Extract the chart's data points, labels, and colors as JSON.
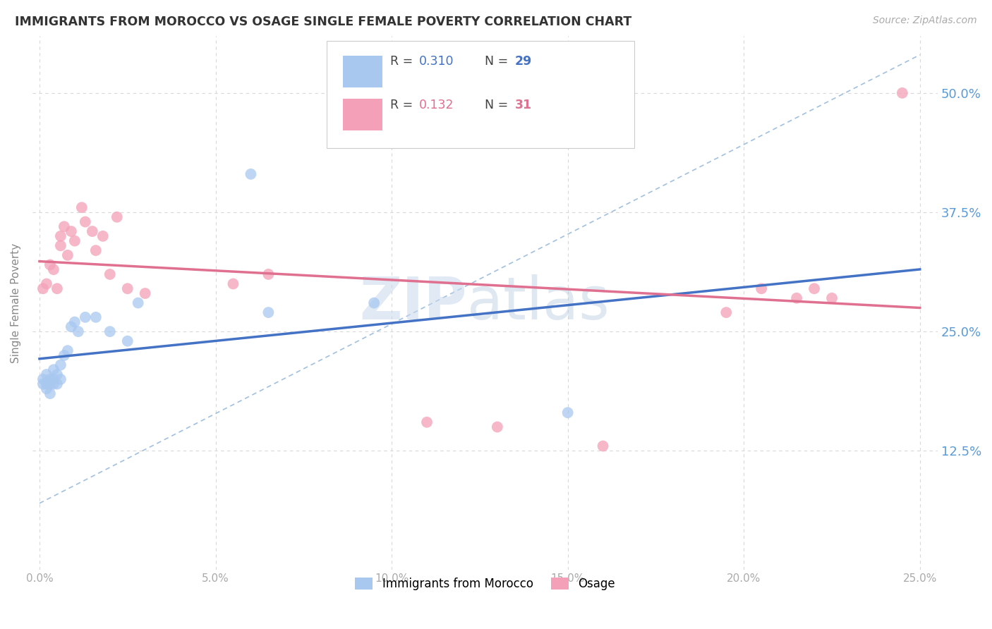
{
  "title": "IMMIGRANTS FROM MOROCCO VS OSAGE SINGLE FEMALE POVERTY CORRELATION CHART",
  "source": "Source: ZipAtlas.com",
  "ylabel": "Single Female Poverty",
  "ytick_labels": [
    "12.5%",
    "25.0%",
    "37.5%",
    "50.0%"
  ],
  "ytick_values": [
    0.125,
    0.25,
    0.375,
    0.5
  ],
  "xtick_values": [
    0.0,
    0.05,
    0.1,
    0.15,
    0.2,
    0.25
  ],
  "xtick_labels": [
    "0.0%",
    "5.0%",
    "10.0%",
    "15.0%",
    "20.0%",
    "25.0%"
  ],
  "xlim": [
    -0.002,
    0.255
  ],
  "ylim": [
    0.0,
    0.56
  ],
  "legend_r1": "0.310",
  "legend_n1": "29",
  "legend_r2": "0.132",
  "legend_n2": "31",
  "legend_label1": "Immigrants from Morocco",
  "legend_label2": "Osage",
  "color_blue": "#a8c8f0",
  "color_pink": "#f4a0b8",
  "line_blue": "#4472c4",
  "line_pink": "#e07090",
  "line_dashed_color": "#8ab0d8",
  "title_color": "#333333",
  "ytick_color_right": "#5b9bd5",
  "background_color": "#ffffff",
  "grid_color": "#d8d8d8",
  "morocco_x": [
    0.001,
    0.001,
    0.002,
    0.002,
    0.002,
    0.003,
    0.003,
    0.003,
    0.004,
    0.004,
    0.004,
    0.005,
    0.005,
    0.006,
    0.006,
    0.007,
    0.008,
    0.009,
    0.01,
    0.011,
    0.013,
    0.016,
    0.02,
    0.025,
    0.028,
    0.06,
    0.065,
    0.095,
    0.15
  ],
  "morocco_y": [
    0.2,
    0.195,
    0.205,
    0.195,
    0.19,
    0.2,
    0.195,
    0.185,
    0.195,
    0.21,
    0.2,
    0.205,
    0.195,
    0.215,
    0.2,
    0.225,
    0.23,
    0.255,
    0.26,
    0.25,
    0.265,
    0.265,
    0.25,
    0.24,
    0.28,
    0.415,
    0.27,
    0.28,
    0.165
  ],
  "osage_x": [
    0.001,
    0.002,
    0.003,
    0.004,
    0.005,
    0.006,
    0.006,
    0.007,
    0.008,
    0.009,
    0.01,
    0.012,
    0.013,
    0.015,
    0.016,
    0.018,
    0.02,
    0.022,
    0.025,
    0.03,
    0.055,
    0.065,
    0.11,
    0.13,
    0.16,
    0.195,
    0.205,
    0.215,
    0.22,
    0.225,
    0.245
  ],
  "osage_y": [
    0.295,
    0.3,
    0.32,
    0.315,
    0.295,
    0.34,
    0.35,
    0.36,
    0.33,
    0.355,
    0.345,
    0.38,
    0.365,
    0.355,
    0.335,
    0.35,
    0.31,
    0.37,
    0.295,
    0.29,
    0.3,
    0.31,
    0.155,
    0.15,
    0.13,
    0.27,
    0.295,
    0.285,
    0.295,
    0.285,
    0.5
  ]
}
